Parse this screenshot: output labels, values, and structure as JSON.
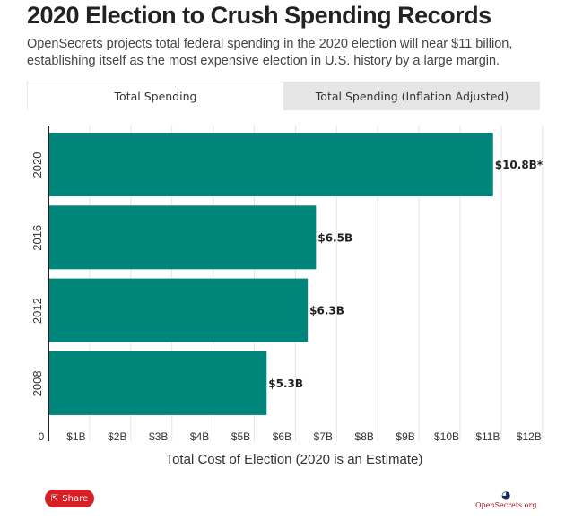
{
  "header": {
    "title": "2020 Election to Crush Spending Records",
    "subtitle": "OpenSecrets projects total federal spending in the 2020 election will near $11 billion, establishing itself as the most expensive election in U.S. history by a large margin."
  },
  "tabs": [
    {
      "label": "Total Spending",
      "active": true
    },
    {
      "label": "Total Spending (Inflation Adjusted)",
      "active": false
    }
  ],
  "chart_data": {
    "type": "bar",
    "orientation": "horizontal",
    "categories": [
      "2020",
      "2016",
      "2012",
      "2008"
    ],
    "values": [
      10.8,
      6.5,
      6.3,
      5.3
    ],
    "data_labels": [
      "$10.8B*",
      "$6.5B",
      "$6.3B",
      "$5.3B"
    ],
    "xlabel": "Total Cost of Election (2020 is an Estimate)",
    "xlim": [
      0,
      12
    ],
    "xticks": [
      "0",
      "$1B",
      "$2B",
      "$3B",
      "$4B",
      "$5B",
      "$6B",
      "$7B",
      "$8B",
      "$9B",
      "$10B",
      "$11B",
      "$12B"
    ],
    "grid": true,
    "bar_color": "#00857a"
  },
  "footer": {
    "share_label": "Share",
    "logo_text": "OpenSecrets.org"
  }
}
